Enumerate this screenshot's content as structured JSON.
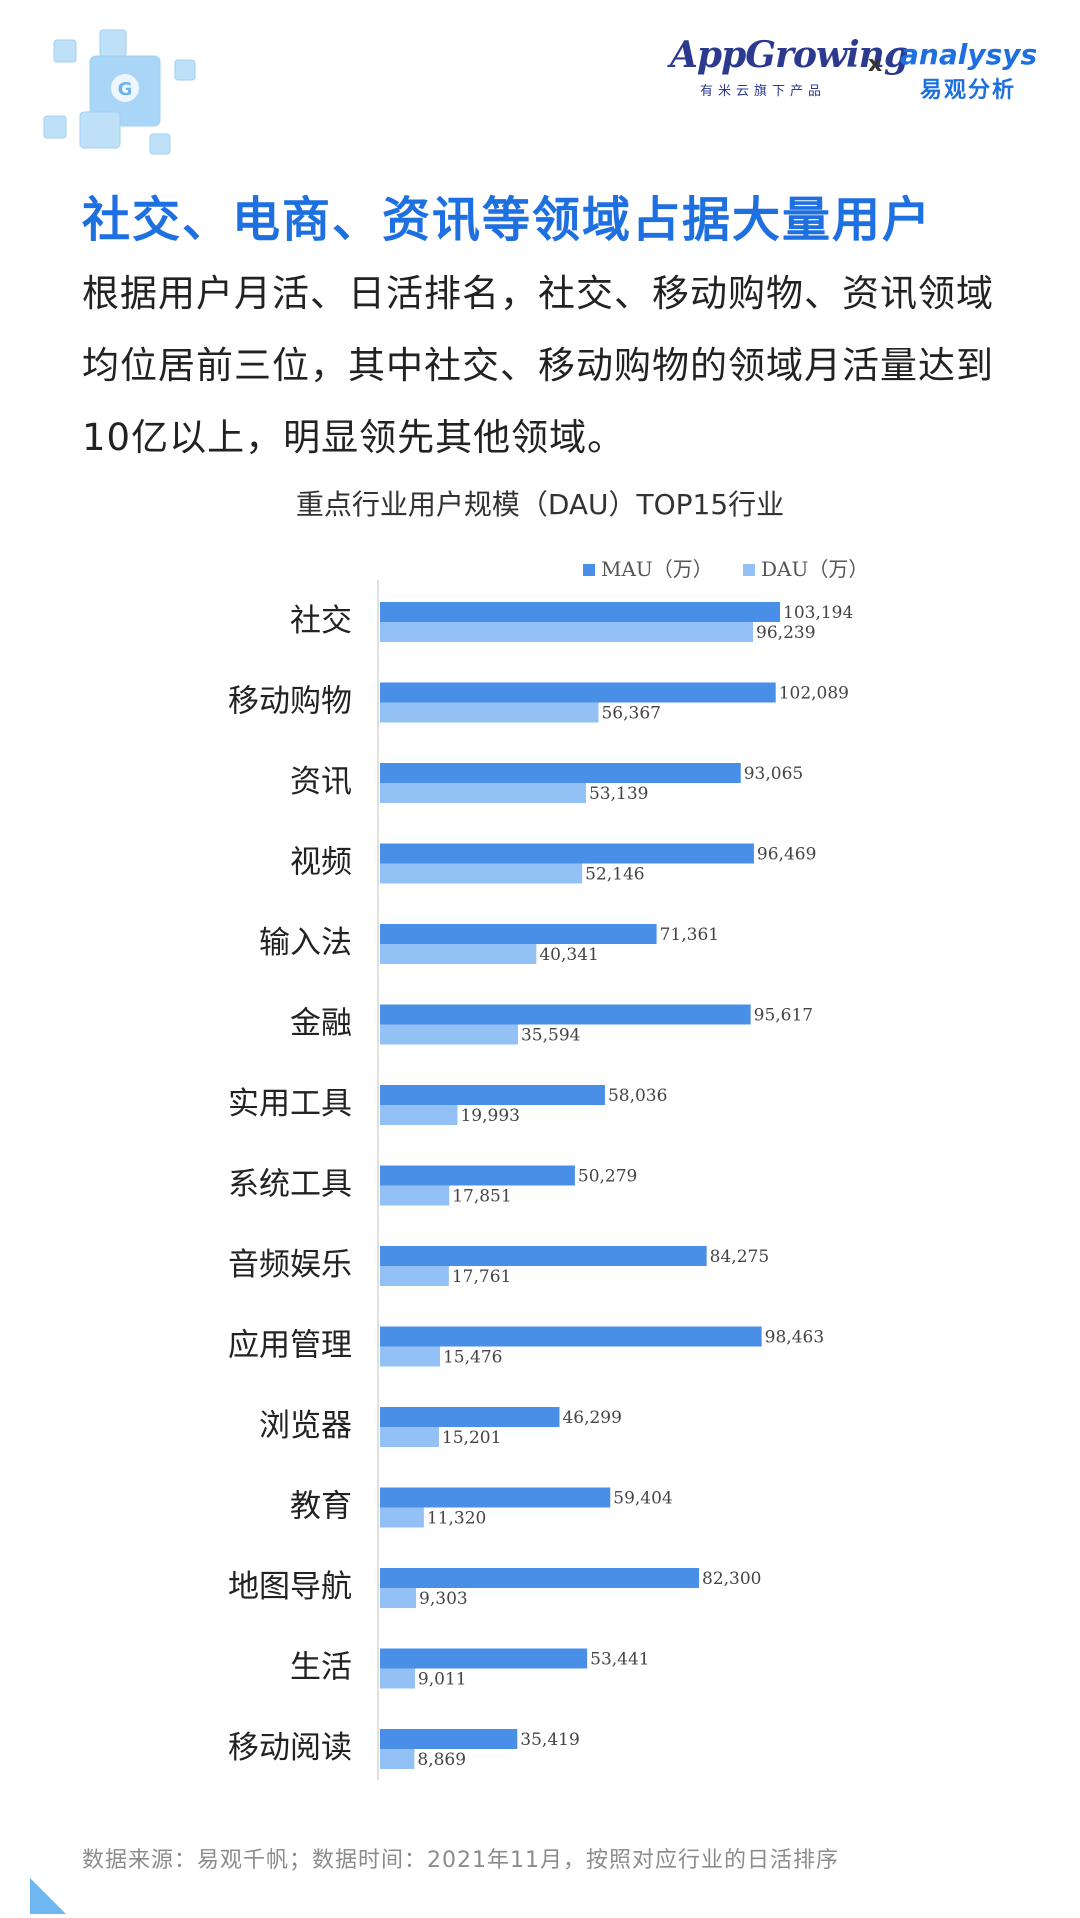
{
  "brand": {
    "app_logo": "AppGrowing",
    "app_sub": "有米云旗下产品",
    "separator": "x",
    "analysys_logo": "analysys",
    "analysys_sub": "易观分析"
  },
  "headline": "社交、电商、资讯等领域占据大量用户",
  "description": "根据用户月活、日活排名，社交、移动购物、资讯领域均位居前三位，其中社交、移动购物的领域月活量达到10亿以上，明显领先其他领域。",
  "chart_data": {
    "type": "bar",
    "orientation": "horizontal",
    "title": "重点行业用户规模（DAU）TOP15行业",
    "xlabel": "",
    "ylabel": "",
    "xlim": [
      0,
      120000
    ],
    "grid": false,
    "legend_position": "top-right",
    "categories": [
      "社交",
      "移动购物",
      "资讯",
      "视频",
      "输入法",
      "金融",
      "实用工具",
      "系统工具",
      "音频娱乐",
      "应用管理",
      "浏览器",
      "教育",
      "地图导航",
      "生活",
      "移动阅读"
    ],
    "series": [
      {
        "name": "MAU（万）",
        "color": "#4a8fe7",
        "values": [
          103194,
          102089,
          93065,
          96469,
          71361,
          95617,
          58036,
          50279,
          84275,
          98463,
          46299,
          59404,
          82300,
          53441,
          35419
        ],
        "labels": [
          "103,194",
          "102,089",
          "93,065",
          "96,469",
          "71,361",
          "95,617",
          "58,036",
          "50,279",
          "84,275",
          "98,463",
          "46,299",
          "59,404",
          "82,300",
          "53,441",
          "35,419"
        ]
      },
      {
        "name": "DAU（万）",
        "color": "#93c0f5",
        "values": [
          96239,
          56367,
          53139,
          52146,
          40341,
          35594,
          19993,
          17851,
          17761,
          15476,
          15201,
          11320,
          9303,
          9011,
          8869
        ],
        "labels": [
          "96,239",
          "56,367",
          "53,139",
          "52,146",
          "40,341",
          "35,594",
          "19,993",
          "17,851",
          "17,761",
          "15,476",
          "15,201",
          "11,320",
          "9,303",
          "9,011",
          "8,869"
        ]
      }
    ]
  },
  "source": "数据来源：易观千帆；数据时间：2021年11月，按照对应行业的日活排序",
  "colors": {
    "accent": "#1e6fe0",
    "mau": "#4a8fe7",
    "dau": "#93c0f5"
  }
}
